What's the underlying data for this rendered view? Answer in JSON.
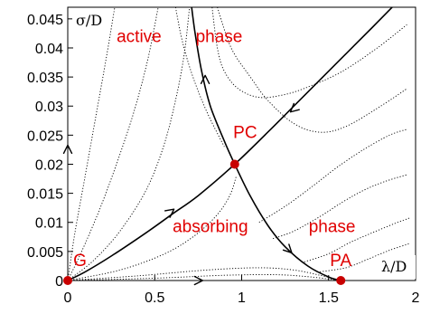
{
  "chart_data": {
    "type": "line",
    "title": "",
    "xlabel": "λ/D",
    "ylabel": "σ/D",
    "xlim": [
      0,
      2
    ],
    "ylim": [
      0,
      0.047
    ],
    "x_ticks": [
      "0",
      "0.5",
      "1",
      "1.5",
      "2"
    ],
    "y_ticks": [
      "0",
      "0.005",
      "0.01",
      "0.015",
      "0.02",
      "0.025",
      "0.03",
      "0.035",
      "0.04",
      "0.045"
    ],
    "grid": false,
    "legend": "none",
    "region_labels": [
      {
        "text": "active",
        "x": 0.41,
        "y": 0.041
      },
      {
        "text": "phase",
        "x": 0.87,
        "y": 0.041
      },
      {
        "text": "absorbing",
        "x": 0.82,
        "y": 0.0083
      },
      {
        "text": "phase",
        "x": 1.52,
        "y": 0.0083
      }
    ],
    "fixed_points": [
      {
        "name": "G",
        "x": 0.0,
        "y": 0.0,
        "label_x": 0.07,
        "label_y": 0.0025
      },
      {
        "name": "PC",
        "x": 0.96,
        "y": 0.02,
        "label_x": 1.02,
        "label_y": 0.0245
      },
      {
        "name": "PA",
        "x": 1.57,
        "y": 0.0,
        "label_x": 1.57,
        "label_y": 0.0025
      }
    ],
    "separatrices": [
      {
        "name": "",
        "style": "solid",
        "x": [
          0.0,
          0.1,
          0.25,
          0.45,
          0.6,
          0.75,
          0.96,
          1.15,
          1.3,
          1.45,
          1.6,
          1.75,
          1.98
        ],
        "y": [
          0.0,
          0.0015,
          0.0042,
          0.0082,
          0.0114,
          0.0146,
          0.02,
          0.0255,
          0.03,
          0.0345,
          0.039,
          0.0435,
          0.0505
        ]
      },
      {
        "name": "",
        "style": "solid",
        "x": [
          0.7,
          0.73,
          0.77,
          0.82,
          0.9,
          0.96,
          1.05,
          1.15,
          1.25,
          1.38,
          1.5,
          1.57
        ],
        "y": [
          0.05,
          0.043,
          0.036,
          0.03,
          0.024,
          0.02,
          0.0145,
          0.0095,
          0.0058,
          0.0025,
          0.0006,
          0.0
        ]
      }
    ],
    "flow_lines": [
      {
        "name": "",
        "style": "dotted",
        "x": [
          0.0,
          0.04,
          0.1,
          0.16,
          0.22,
          0.27
        ],
        "y": [
          0.0,
          0.008,
          0.018,
          0.028,
          0.038,
          0.047
        ]
      },
      {
        "name": "",
        "style": "dotted",
        "x": [
          0.0,
          0.08,
          0.18,
          0.28,
          0.38,
          0.46,
          0.52
        ],
        "y": [
          0.0,
          0.005,
          0.012,
          0.02,
          0.029,
          0.038,
          0.047
        ]
      },
      {
        "name": "",
        "style": "dotted",
        "x": [
          0.0,
          0.15,
          0.3,
          0.45,
          0.55,
          0.62,
          0.67,
          0.7
        ],
        "y": [
          0.0,
          0.0035,
          0.0085,
          0.0155,
          0.023,
          0.031,
          0.039,
          0.047
        ]
      },
      {
        "name": "",
        "style": "dotted",
        "x": [
          0.0,
          0.3,
          0.55,
          0.72,
          0.85,
          0.93,
          0.97
        ],
        "y": [
          0.0,
          0.0018,
          0.0045,
          0.0075,
          0.011,
          0.0145,
          0.018
        ]
      },
      {
        "name": "",
        "style": "dotted",
        "x": [
          0.0,
          0.4,
          0.8,
          1.1,
          1.3,
          1.45,
          1.57
        ],
        "y": [
          0.0,
          0.0008,
          0.0018,
          0.0022,
          0.0018,
          0.0009,
          0.0
        ]
      },
      {
        "name": "",
        "style": "dotted",
        "x": [
          0.0,
          0.5,
          0.9,
          1.2,
          1.4,
          1.57
        ],
        "y": [
          0.0,
          0.0004,
          0.0009,
          0.001,
          0.0006,
          0.0
        ]
      },
      {
        "name": "",
        "style": "dotted",
        "x": [
          0.83,
          0.86,
          0.9,
          0.98,
          1.1,
          1.25,
          1.4,
          1.58,
          1.78,
          1.95
        ],
        "y": [
          0.047,
          0.04,
          0.036,
          0.033,
          0.0315,
          0.032,
          0.0335,
          0.036,
          0.04,
          0.044
        ]
      },
      {
        "name": "",
        "style": "dotted",
        "x": [
          0.86,
          0.94,
          1.05,
          1.15,
          1.3,
          1.45,
          1.6,
          1.8,
          1.95
        ],
        "y": [
          0.047,
          0.04,
          0.035,
          0.031,
          0.027,
          0.0255,
          0.0265,
          0.03,
          0.033
        ]
      },
      {
        "name": "",
        "style": "dotted",
        "x": [
          1.1,
          1.2,
          1.3,
          1.42,
          1.55,
          1.7,
          1.85,
          1.95
        ],
        "y": [
          0.01,
          0.0118,
          0.0138,
          0.0165,
          0.0195,
          0.0225,
          0.025,
          0.026
        ]
      },
      {
        "name": "",
        "style": "dotted",
        "x": [
          1.18,
          1.3,
          1.45,
          1.58,
          1.7,
          1.82,
          1.95
        ],
        "y": [
          0.0072,
          0.0085,
          0.011,
          0.0135,
          0.0155,
          0.017,
          0.0182
        ]
      },
      {
        "name": "",
        "style": "dotted",
        "x": [
          1.36,
          1.5,
          1.62,
          1.75,
          1.88,
          1.97
        ],
        "y": [
          0.0032,
          0.0046,
          0.0065,
          0.0082,
          0.0098,
          0.0108
        ]
      },
      {
        "name": "",
        "style": "dotted",
        "x": [
          1.45,
          1.6,
          1.72,
          1.85,
          1.97
        ],
        "y": [
          0.0015,
          0.0022,
          0.0036,
          0.0052,
          0.0064
        ]
      },
      {
        "name": "",
        "style": "dotted",
        "x": [
          0.62,
          0.66,
          0.72,
          0.8,
          0.9
        ],
        "y": [
          0.047,
          0.041,
          0.035,
          0.029,
          0.023
        ]
      }
    ],
    "arrows": [
      {
        "x": 0.0,
        "y": 0.0225,
        "direction": "up"
      },
      {
        "x": 0.75,
        "y": 0.0,
        "direction": "right"
      },
      {
        "x": 0.59,
        "y": 0.0118,
        "direction": "up-right"
      },
      {
        "x": 0.79,
        "y": 0.0345,
        "direction": "up"
      },
      {
        "x": 1.3,
        "y": 0.0295,
        "direction": "down-left"
      },
      {
        "x": 1.27,
        "y": 0.0053,
        "direction": "down-right"
      }
    ]
  }
}
